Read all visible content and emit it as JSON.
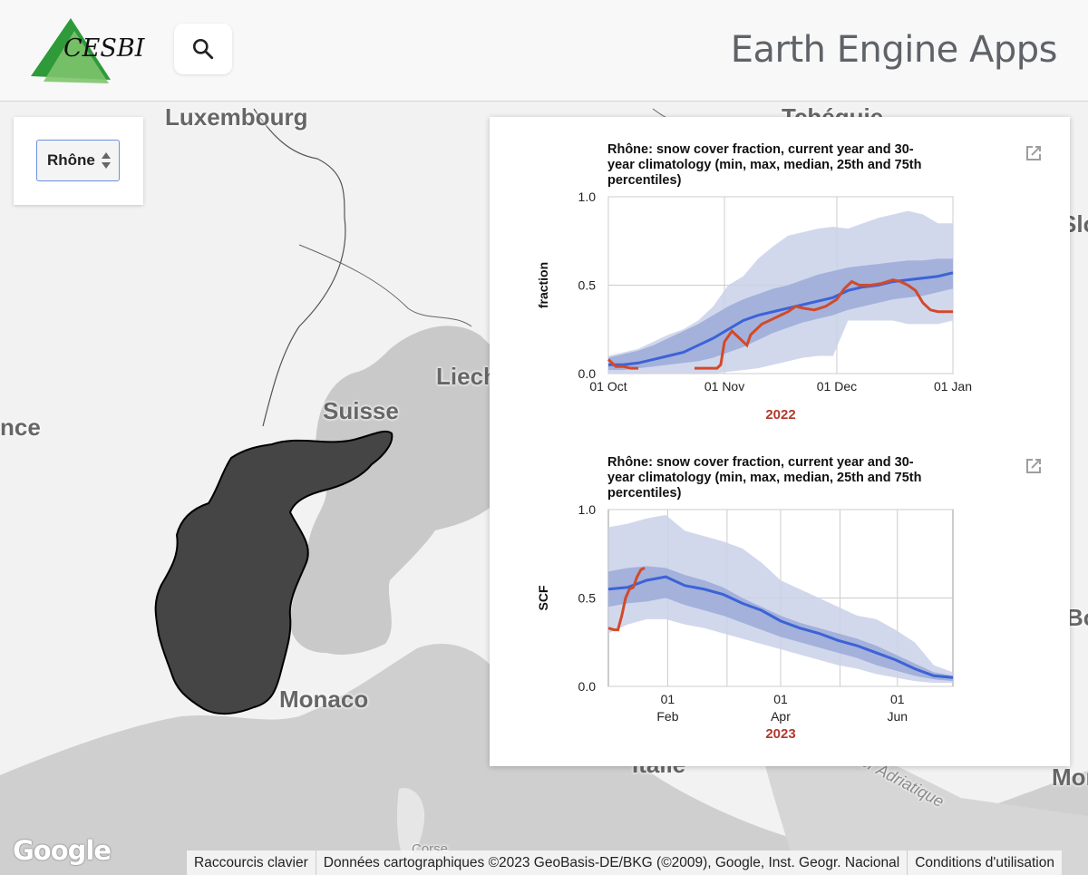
{
  "header": {
    "logo_text": "CESBIO",
    "app_title": "Earth Engine Apps"
  },
  "selector": {
    "value": "Rhône"
  },
  "map": {
    "labels": {
      "luxembourg": "Luxembourg",
      "suisse": "Suisse",
      "liech": "Liech",
      "france": "nce",
      "monaco": "Monaco",
      "italie": "Italie",
      "corse": "Corse",
      "adriatic": "Mer Adriatique",
      "tchequie": "Tchéquie",
      "slo": "Slo",
      "bo": "Bo",
      "mon": "Mon"
    }
  },
  "google_logo": "Google",
  "attribution": {
    "shortcuts": "Raccourcis clavier",
    "map_data": "Données cartographiques ©2023 GeoBasis-DE/BKG (©2009), Google, Inst. Geogr. Nacional",
    "terms": "Conditions d'utilisation"
  },
  "colors": {
    "median": "#3c63d6",
    "current": "#d24a2a",
    "band_outer": "#c9d1e9",
    "band_inner": "#9caad8",
    "year_label": "#b03a2e",
    "basin": "#454545"
  },
  "chart_data": [
    {
      "type": "area",
      "title_lines": [
        "Rhône: snow cover fraction, current year and 30-",
        "year climatology (min, max, median, 25th and 75th",
        "percentiles)"
      ],
      "ylabel": "fraction",
      "year_label": "2022",
      "ylim": [
        0,
        1
      ],
      "yticks": [
        "0.0",
        "0.5",
        "1.0"
      ],
      "xlim": [
        0,
        92
      ],
      "xticks": [
        {
          "x": 0,
          "label": "01 Oct"
        },
        {
          "x": 31,
          "label": "01 Nov"
        },
        {
          "x": 61,
          "label": "01 Dec"
        },
        {
          "x": 92,
          "label": "01 Jan"
        }
      ],
      "x": [
        0,
        4,
        8,
        12,
        16,
        20,
        24,
        28,
        32,
        36,
        40,
        44,
        48,
        52,
        56,
        60,
        64,
        68,
        72,
        76,
        80,
        84,
        88,
        92
      ],
      "min": [
        0.0,
        0.0,
        0.0,
        0.0,
        0.0,
        0.0,
        0.0,
        0.0,
        0.01,
        0.02,
        0.03,
        0.05,
        0.07,
        0.09,
        0.1,
        0.1,
        0.3,
        0.3,
        0.3,
        0.3,
        0.28,
        0.28,
        0.28,
        0.3
      ],
      "max": [
        0.1,
        0.12,
        0.14,
        0.18,
        0.22,
        0.25,
        0.3,
        0.38,
        0.5,
        0.55,
        0.65,
        0.72,
        0.78,
        0.8,
        0.82,
        0.83,
        0.82,
        0.85,
        0.88,
        0.9,
        0.92,
        0.9,
        0.85,
        0.85
      ],
      "p25": [
        0.02,
        0.02,
        0.03,
        0.04,
        0.05,
        0.06,
        0.07,
        0.09,
        0.12,
        0.15,
        0.19,
        0.23,
        0.26,
        0.29,
        0.31,
        0.33,
        0.36,
        0.38,
        0.4,
        0.42,
        0.43,
        0.44,
        0.46,
        0.48
      ],
      "p75": [
        0.09,
        0.11,
        0.13,
        0.16,
        0.2,
        0.24,
        0.28,
        0.33,
        0.38,
        0.42,
        0.45,
        0.48,
        0.5,
        0.53,
        0.56,
        0.58,
        0.6,
        0.61,
        0.62,
        0.63,
        0.64,
        0.64,
        0.65,
        0.65
      ],
      "median": [
        0.05,
        0.05,
        0.06,
        0.08,
        0.1,
        0.12,
        0.16,
        0.2,
        0.25,
        0.3,
        0.33,
        0.35,
        0.37,
        0.39,
        0.41,
        0.43,
        0.47,
        0.49,
        0.5,
        0.52,
        0.53,
        0.54,
        0.55,
        0.57
      ],
      "current_x": [
        [
          0,
          1,
          2,
          4,
          6,
          8
        ],
        [
          23,
          26,
          29,
          30,
          31,
          33,
          35,
          37,
          38,
          41,
          44,
          46,
          48,
          50,
          52,
          55,
          58,
          61,
          63,
          65,
          67,
          70,
          73,
          76,
          78,
          80,
          82,
          84,
          86,
          88,
          90,
          92
        ]
      ],
      "current_y": [
        [
          0.08,
          0.06,
          0.04,
          0.04,
          0.03,
          0.03
        ],
        [
          0.03,
          0.03,
          0.03,
          0.05,
          0.18,
          0.24,
          0.2,
          0.16,
          0.22,
          0.28,
          0.31,
          0.33,
          0.35,
          0.38,
          0.37,
          0.36,
          0.38,
          0.42,
          0.48,
          0.52,
          0.5,
          0.5,
          0.51,
          0.53,
          0.52,
          0.5,
          0.47,
          0.4,
          0.36,
          0.35,
          0.35,
          0.35
        ]
      ]
    },
    {
      "type": "area",
      "title_lines": [
        "Rhône: snow cover fraction, current year and 30-",
        "year climatology (min, max, median, 25th and 75th",
        "percentiles)"
      ],
      "ylabel": "SCF",
      "year_label": "2023",
      "ylim": [
        0,
        1
      ],
      "yticks": [
        "0.0",
        "0.5",
        "1.0"
      ],
      "xlim": [
        0,
        180
      ],
      "xticks": [
        {
          "x": 31,
          "label": "01",
          "sub": "Feb"
        },
        {
          "x": 90,
          "label": "01",
          "sub": "Apr"
        },
        {
          "x": 151,
          "label": "01",
          "sub": "Jun"
        }
      ],
      "x": [
        0,
        10,
        20,
        30,
        40,
        50,
        60,
        70,
        80,
        90,
        100,
        110,
        120,
        130,
        140,
        150,
        160,
        170,
        180
      ],
      "min": [
        0.3,
        0.35,
        0.38,
        0.38,
        0.35,
        0.33,
        0.3,
        0.27,
        0.24,
        0.21,
        0.18,
        0.15,
        0.12,
        0.1,
        0.07,
        0.05,
        0.03,
        0.02,
        0.02
      ],
      "max": [
        0.9,
        0.92,
        0.95,
        0.97,
        0.88,
        0.85,
        0.82,
        0.78,
        0.7,
        0.6,
        0.55,
        0.5,
        0.45,
        0.4,
        0.38,
        0.32,
        0.25,
        0.12,
        0.08
      ],
      "p25": [
        0.45,
        0.47,
        0.48,
        0.5,
        0.46,
        0.43,
        0.4,
        0.36,
        0.32,
        0.28,
        0.25,
        0.22,
        0.19,
        0.16,
        0.12,
        0.09,
        0.06,
        0.04,
        0.03
      ],
      "p75": [
        0.65,
        0.67,
        0.68,
        0.67,
        0.63,
        0.6,
        0.56,
        0.5,
        0.45,
        0.4,
        0.36,
        0.33,
        0.3,
        0.27,
        0.23,
        0.18,
        0.13,
        0.08,
        0.06
      ],
      "median": [
        0.55,
        0.56,
        0.6,
        0.62,
        0.57,
        0.55,
        0.52,
        0.47,
        0.43,
        0.37,
        0.33,
        0.3,
        0.26,
        0.23,
        0.19,
        0.15,
        0.1,
        0.06,
        0.05
      ],
      "current_x": [
        [
          0,
          3,
          5,
          7,
          9,
          11,
          13,
          15,
          17,
          19
        ]
      ],
      "current_y": [
        [
          0.33,
          0.32,
          0.32,
          0.4,
          0.5,
          0.55,
          0.56,
          0.62,
          0.66,
          0.67
        ]
      ]
    }
  ]
}
